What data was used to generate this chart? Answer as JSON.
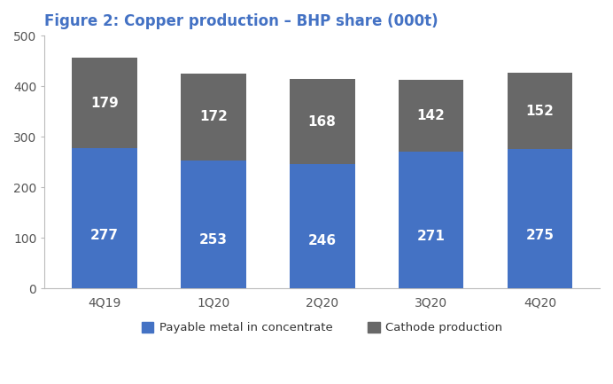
{
  "title": "Figure 2: Copper production – BHP share (000t)",
  "categories": [
    "4Q19",
    "1Q20",
    "2Q20",
    "3Q20",
    "4Q20"
  ],
  "payable_metal": [
    277,
    253,
    246,
    271,
    275
  ],
  "cathode_production": [
    179,
    172,
    168,
    142,
    152
  ],
  "color_payable": "#4472C4",
  "color_cathode": "#686868",
  "ylim": [
    0,
    500
  ],
  "yticks": [
    0,
    100,
    200,
    300,
    400,
    500
  ],
  "legend_payable": "Payable metal in concentrate",
  "legend_cathode": "Cathode production",
  "background_color": "#ffffff",
  "title_color": "#4472C4",
  "title_fontsize": 12,
  "tick_fontsize": 10,
  "bar_width": 0.6,
  "value_fontsize": 11,
  "payable_label_color": "#ffffff",
  "cathode_label_color": "#ffffff"
}
